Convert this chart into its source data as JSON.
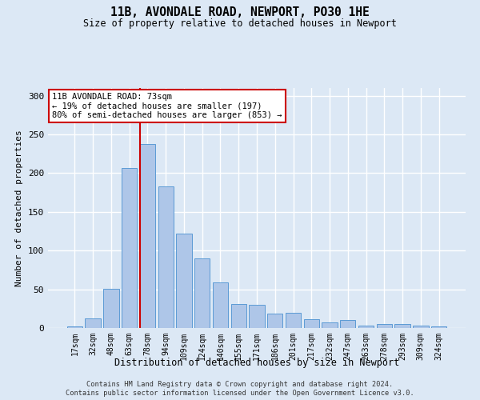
{
  "title": "11B, AVONDALE ROAD, NEWPORT, PO30 1HE",
  "subtitle": "Size of property relative to detached houses in Newport",
  "xlabel": "Distribution of detached houses by size in Newport",
  "ylabel": "Number of detached properties",
  "bar_color": "#aec6e8",
  "bar_edge_color": "#5b9bd5",
  "background_color": "#dce8f5",
  "grid_color": "#ffffff",
  "categories": [
    "17sqm",
    "32sqm",
    "48sqm",
    "63sqm",
    "78sqm",
    "94sqm",
    "109sqm",
    "124sqm",
    "140sqm",
    "155sqm",
    "171sqm",
    "186sqm",
    "201sqm",
    "217sqm",
    "232sqm",
    "247sqm",
    "263sqm",
    "278sqm",
    "293sqm",
    "309sqm",
    "324sqm"
  ],
  "values": [
    2,
    12,
    51,
    207,
    238,
    183,
    122,
    90,
    59,
    31,
    30,
    19,
    20,
    11,
    7,
    10,
    3,
    5,
    5,
    3,
    2
  ],
  "ylim": [
    0,
    310
  ],
  "yticks": [
    0,
    50,
    100,
    150,
    200,
    250,
    300
  ],
  "red_line_index": 4,
  "annotation_text": "11B AVONDALE ROAD: 73sqm\n← 19% of detached houses are smaller (197)\n80% of semi-detached houses are larger (853) →",
  "annotation_box_color": "#ffffff",
  "annotation_box_edge_color": "#cc0000",
  "red_line_color": "#cc0000",
  "footer_line1": "Contains HM Land Registry data © Crown copyright and database right 2024.",
  "footer_line2": "Contains public sector information licensed under the Open Government Licence v3.0."
}
